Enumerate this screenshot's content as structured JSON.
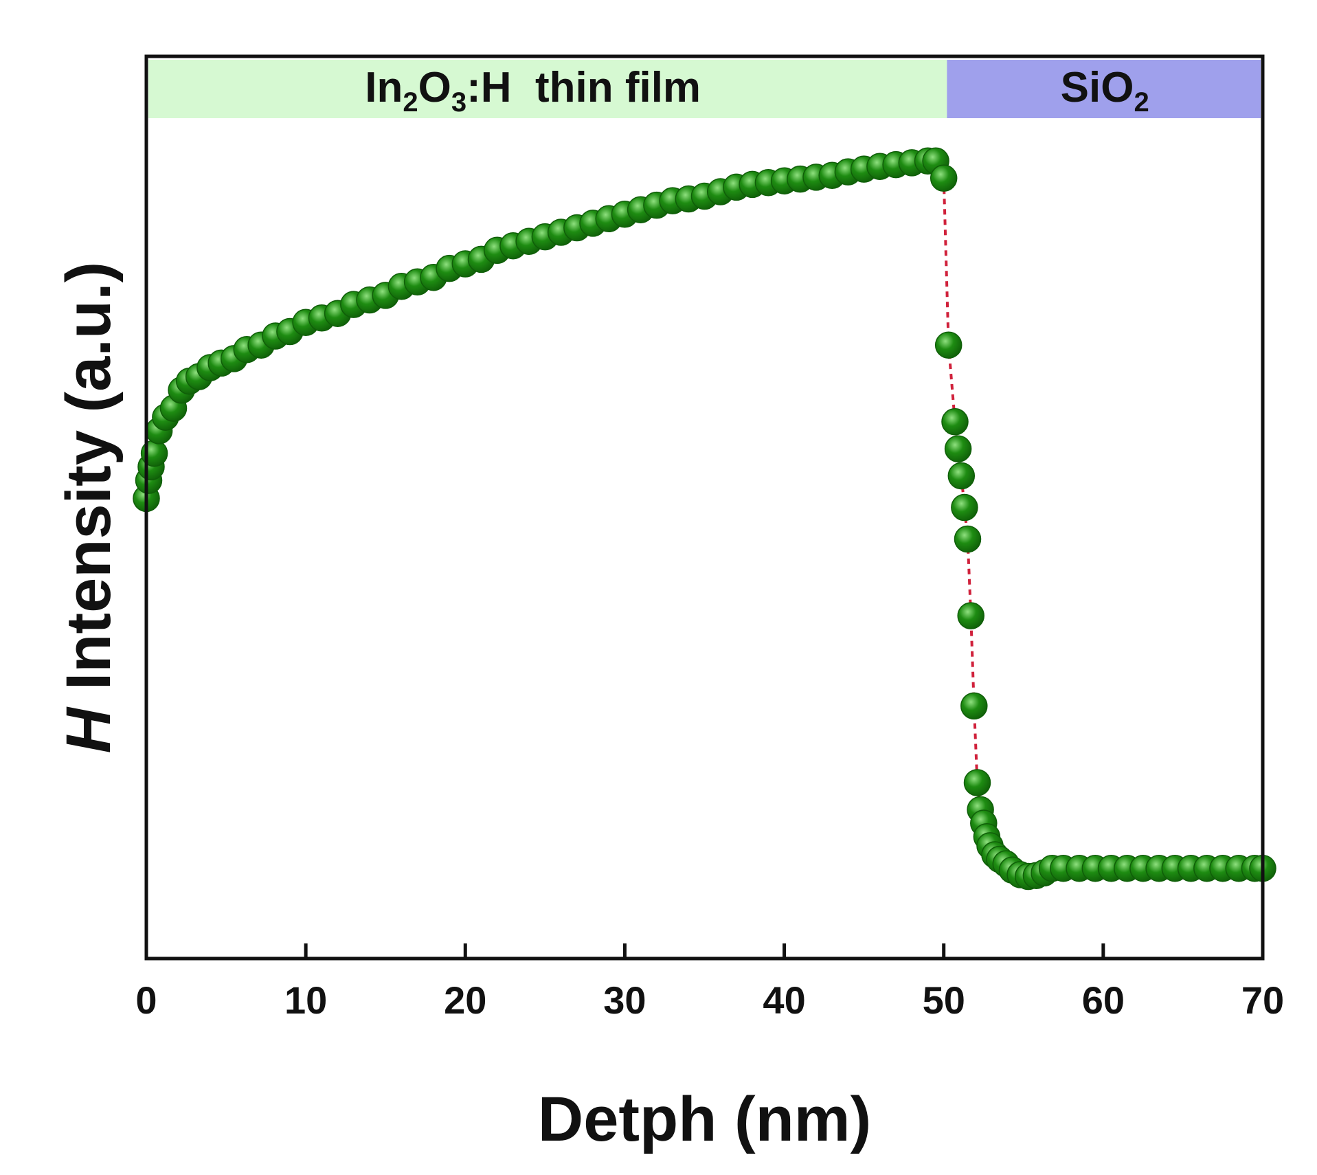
{
  "chart_data": {
    "type": "scatter",
    "title": "",
    "xlabel": "Detph (nm)",
    "ylabel_italic": "H",
    "ylabel_rest": " Intensity (a.u.)",
    "xlim": [
      0,
      70
    ],
    "ylim": [
      0,
      1
    ],
    "xticks": [
      "0",
      "10",
      "20",
      "30",
      "40",
      "50",
      "60",
      "70"
    ],
    "yticks_shown": false,
    "grid": false,
    "legend": "none",
    "colors": {
      "marker": "#1e8c12",
      "marker_dark": "#0f5e08",
      "connector": "#d0213b",
      "film_band": "#d6f9d2",
      "substrate_band": "#9fa0ec"
    },
    "regions": [
      {
        "name": "In2O3:H thin film",
        "label_parts": [
          "In",
          "2",
          "O",
          "3",
          ":H  thin film"
        ],
        "x_start": 0,
        "x_end": 50.2
      },
      {
        "name": "SiO2",
        "label_parts": [
          "SiO",
          "2"
        ],
        "x_start": 50.2,
        "x_end": 70
      }
    ],
    "series": [
      {
        "x": [
          0,
          0.15,
          0.3,
          0.5,
          0.8,
          1.2,
          1.7,
          2.2,
          2.7,
          3.3,
          4.0,
          4.7,
          5.5,
          6.3,
          7.2,
          8.1,
          9.0,
          10.0,
          11.0,
          12.0,
          13.0,
          14.0,
          15.0,
          16.0,
          17.0,
          18.0,
          19.0,
          20.0,
          21.0,
          22.0,
          23.0,
          24.0,
          25.0,
          26.0,
          27.0,
          28.0,
          29.0,
          30.0,
          31.0,
          32.0,
          33.0,
          34.0,
          35.0,
          36.0,
          37.0,
          38.0,
          39.0,
          40.0,
          41.0,
          42.0,
          43.0,
          44.0,
          45.0,
          46.0,
          47.0,
          48.0,
          49.0,
          49.5,
          50.0,
          50.3,
          50.7,
          50.9,
          51.1,
          51.3,
          51.5,
          51.7,
          51.9,
          52.1,
          52.3,
          52.5,
          52.7,
          52.9,
          53.2,
          53.5,
          53.9,
          54.3,
          54.8,
          55.3,
          55.8,
          56.3,
          56.8,
          57.5,
          58.5,
          59.5,
          60.5,
          61.5,
          62.5,
          63.5,
          64.5,
          65.5,
          66.5,
          67.5,
          68.5,
          69.5,
          70.0
        ],
        "y": [
          0.51,
          0.53,
          0.545,
          0.56,
          0.585,
          0.6,
          0.61,
          0.63,
          0.64,
          0.645,
          0.655,
          0.66,
          0.665,
          0.675,
          0.68,
          0.69,
          0.695,
          0.705,
          0.71,
          0.715,
          0.725,
          0.73,
          0.735,
          0.745,
          0.75,
          0.755,
          0.765,
          0.77,
          0.775,
          0.785,
          0.79,
          0.795,
          0.8,
          0.805,
          0.81,
          0.815,
          0.82,
          0.825,
          0.83,
          0.835,
          0.84,
          0.842,
          0.845,
          0.85,
          0.855,
          0.858,
          0.86,
          0.862,
          0.864,
          0.866,
          0.868,
          0.872,
          0.875,
          0.878,
          0.88,
          0.882,
          0.884,
          0.884,
          0.865,
          0.68,
          0.595,
          0.565,
          0.535,
          0.5,
          0.465,
          0.38,
          0.28,
          0.195,
          0.165,
          0.15,
          0.135,
          0.125,
          0.115,
          0.11,
          0.105,
          0.098,
          0.093,
          0.091,
          0.092,
          0.095,
          0.1,
          0.1,
          0.1,
          0.1,
          0.1,
          0.1,
          0.1,
          0.1,
          0.1,
          0.1,
          0.1,
          0.1,
          0.1,
          0.1,
          0.1
        ]
      }
    ]
  }
}
